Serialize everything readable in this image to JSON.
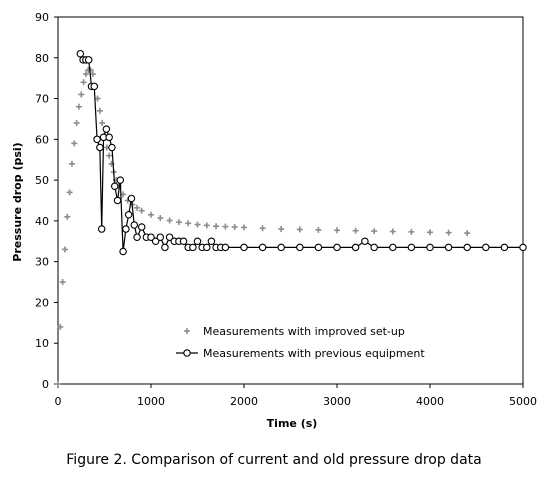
{
  "caption": "Figure 2. Comparison of current and old pressure drop data",
  "chart_data": {
    "type": "scatter",
    "xlabel": "Time (s)",
    "ylabel": "Pressure drop (psi)",
    "xlim": [
      0,
      5000
    ],
    "ylim": [
      0,
      90
    ],
    "x_ticks": [
      0,
      1000,
      2000,
      3000,
      4000,
      5000
    ],
    "y_ticks": [
      0,
      10,
      20,
      30,
      40,
      50,
      60,
      70,
      80,
      90
    ],
    "grid": false,
    "legend_position": "lower-center",
    "series": [
      {
        "name": "Measurements with improved set-up",
        "marker": "plus",
        "line": false,
        "color": "#8c8c8c",
        "x": [
          0,
          25,
          50,
          75,
          100,
          125,
          150,
          175,
          200,
          225,
          250,
          275,
          300,
          325,
          350,
          375,
          400,
          425,
          450,
          475,
          500,
          525,
          550,
          575,
          600,
          625,
          650,
          700,
          750,
          800,
          850,
          900,
          1000,
          1100,
          1200,
          1300,
          1400,
          1500,
          1600,
          1700,
          1800,
          1900,
          2000,
          2200,
          2400,
          2600,
          2800,
          3000,
          3200,
          3400,
          3600,
          3800,
          4000,
          4200,
          4400
        ],
        "y": [
          0,
          14,
          25,
          33,
          41,
          47,
          54,
          59,
          64,
          68,
          71,
          74,
          76,
          77,
          77,
          76,
          73,
          70,
          67,
          64,
          61,
          58,
          56,
          54,
          52,
          50,
          48.5,
          46.5,
          45,
          44,
          43.2,
          42.5,
          41.5,
          40.7,
          40.1,
          39.7,
          39.4,
          39.1,
          38.9,
          38.7,
          38.6,
          38.5,
          38.4,
          38.2,
          38,
          37.9,
          37.8,
          37.7,
          37.6,
          37.5,
          37.4,
          37.3,
          37.2,
          37.1,
          37
        ]
      },
      {
        "name": "Measurements with previous equipment",
        "marker": "circle",
        "line": true,
        "color": "#000000",
        "x": [
          240,
          270,
          300,
          330,
          360,
          390,
          420,
          450,
          470,
          490,
          520,
          550,
          580,
          610,
          640,
          670,
          700,
          730,
          760,
          790,
          820,
          850,
          900,
          950,
          1000,
          1050,
          1100,
          1150,
          1200,
          1250,
          1300,
          1350,
          1400,
          1450,
          1500,
          1550,
          1600,
          1650,
          1700,
          1750,
          1800,
          2000,
          2200,
          2400,
          2600,
          2800,
          3000,
          3200,
          3300,
          3400,
          3600,
          3800,
          4000,
          4200,
          4400,
          4600,
          4800,
          5000
        ],
        "y": [
          81,
          79.5,
          79.5,
          79.5,
          73,
          73,
          60,
          58,
          38,
          60.5,
          62.5,
          60.5,
          58,
          48.5,
          45,
          50,
          32.5,
          38,
          41.5,
          45.5,
          39,
          36,
          38.5,
          36,
          36,
          35,
          36,
          33.5,
          36,
          35,
          35,
          35,
          33.5,
          33.5,
          35,
          33.5,
          33.5,
          35,
          33.5,
          33.5,
          33.5,
          33.5,
          33.5,
          33.5,
          33.5,
          33.5,
          33.5,
          33.5,
          35,
          33.5,
          33.5,
          33.5,
          33.5,
          33.5,
          33.5,
          33.5,
          33.5,
          33.5
        ]
      }
    ]
  }
}
